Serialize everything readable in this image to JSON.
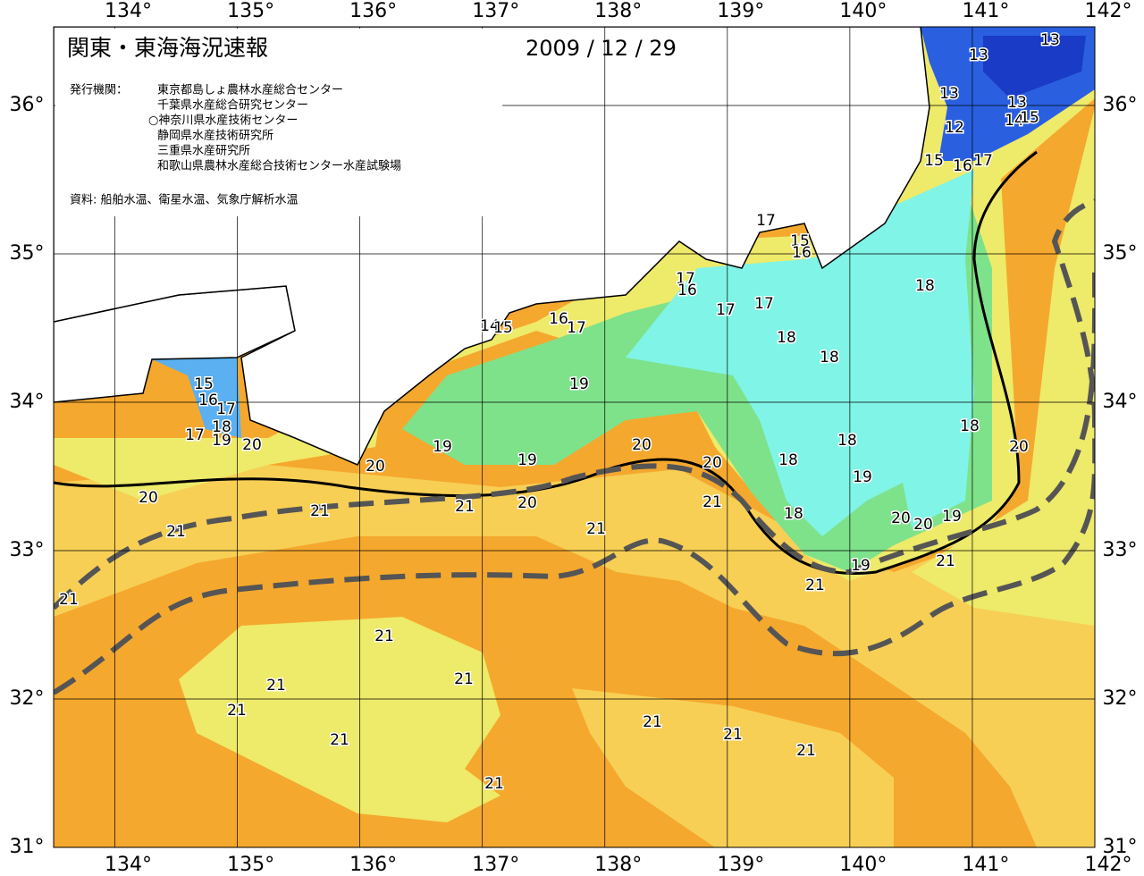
{
  "map": {
    "title": "関東・東海海況速報",
    "date": "2009 / 12 / 29",
    "publisher_label": "発行機関：",
    "publishers": [
      "東京都島しょ農林水産総合センター",
      "千葉県水産総合研究センター",
      "○神奈川県水産技術センター",
      "静岡県水産技術研究所",
      "三重県水産研究所",
      "和歌山県農林水産総合技術センター水産試験場"
    ],
    "source": "資料: 船舶水温、衛星水温、気象庁解析水温",
    "xlim": [
      133.5,
      142
    ],
    "ylim": [
      31,
      36.53
    ],
    "xticks": [
      {
        "value": 134,
        "label": "134°"
      },
      {
        "value": 135,
        "label": "135°"
      },
      {
        "value": 136,
        "label": "136°"
      },
      {
        "value": 137,
        "label": "137°"
      },
      {
        "value": 138,
        "label": "138°"
      },
      {
        "value": 139,
        "label": "139°"
      },
      {
        "value": 140,
        "label": "140°"
      },
      {
        "value": 141,
        "label": "141°"
      },
      {
        "value": 142,
        "label": "142°"
      }
    ],
    "yticks": [
      {
        "value": 31,
        "label": "31°"
      },
      {
        "value": 32,
        "label": "32°"
      },
      {
        "value": 33,
        "label": "33°"
      },
      {
        "value": 34,
        "label": "34°"
      },
      {
        "value": 35,
        "label": "35°"
      },
      {
        "value": 36,
        "label": "36°"
      }
    ],
    "contour_labels": [
      13,
      13,
      13,
      13,
      12,
      14,
      15,
      15,
      16,
      17,
      17,
      15,
      16,
      17,
      16,
      17,
      17,
      18,
      18,
      18,
      14,
      15,
      16,
      17,
      15,
      16,
      17,
      18,
      17,
      19,
      19,
      20,
      19,
      19,
      20,
      20,
      18,
      18,
      18,
      20,
      19,
      18,
      20,
      20,
      19,
      20,
      20,
      21,
      21,
      20,
      21,
      21,
      21,
      19,
      21,
      21,
      21,
      21,
      21,
      21,
      21,
      21,
      21,
      21,
      21,
      21
    ]
  }
}
